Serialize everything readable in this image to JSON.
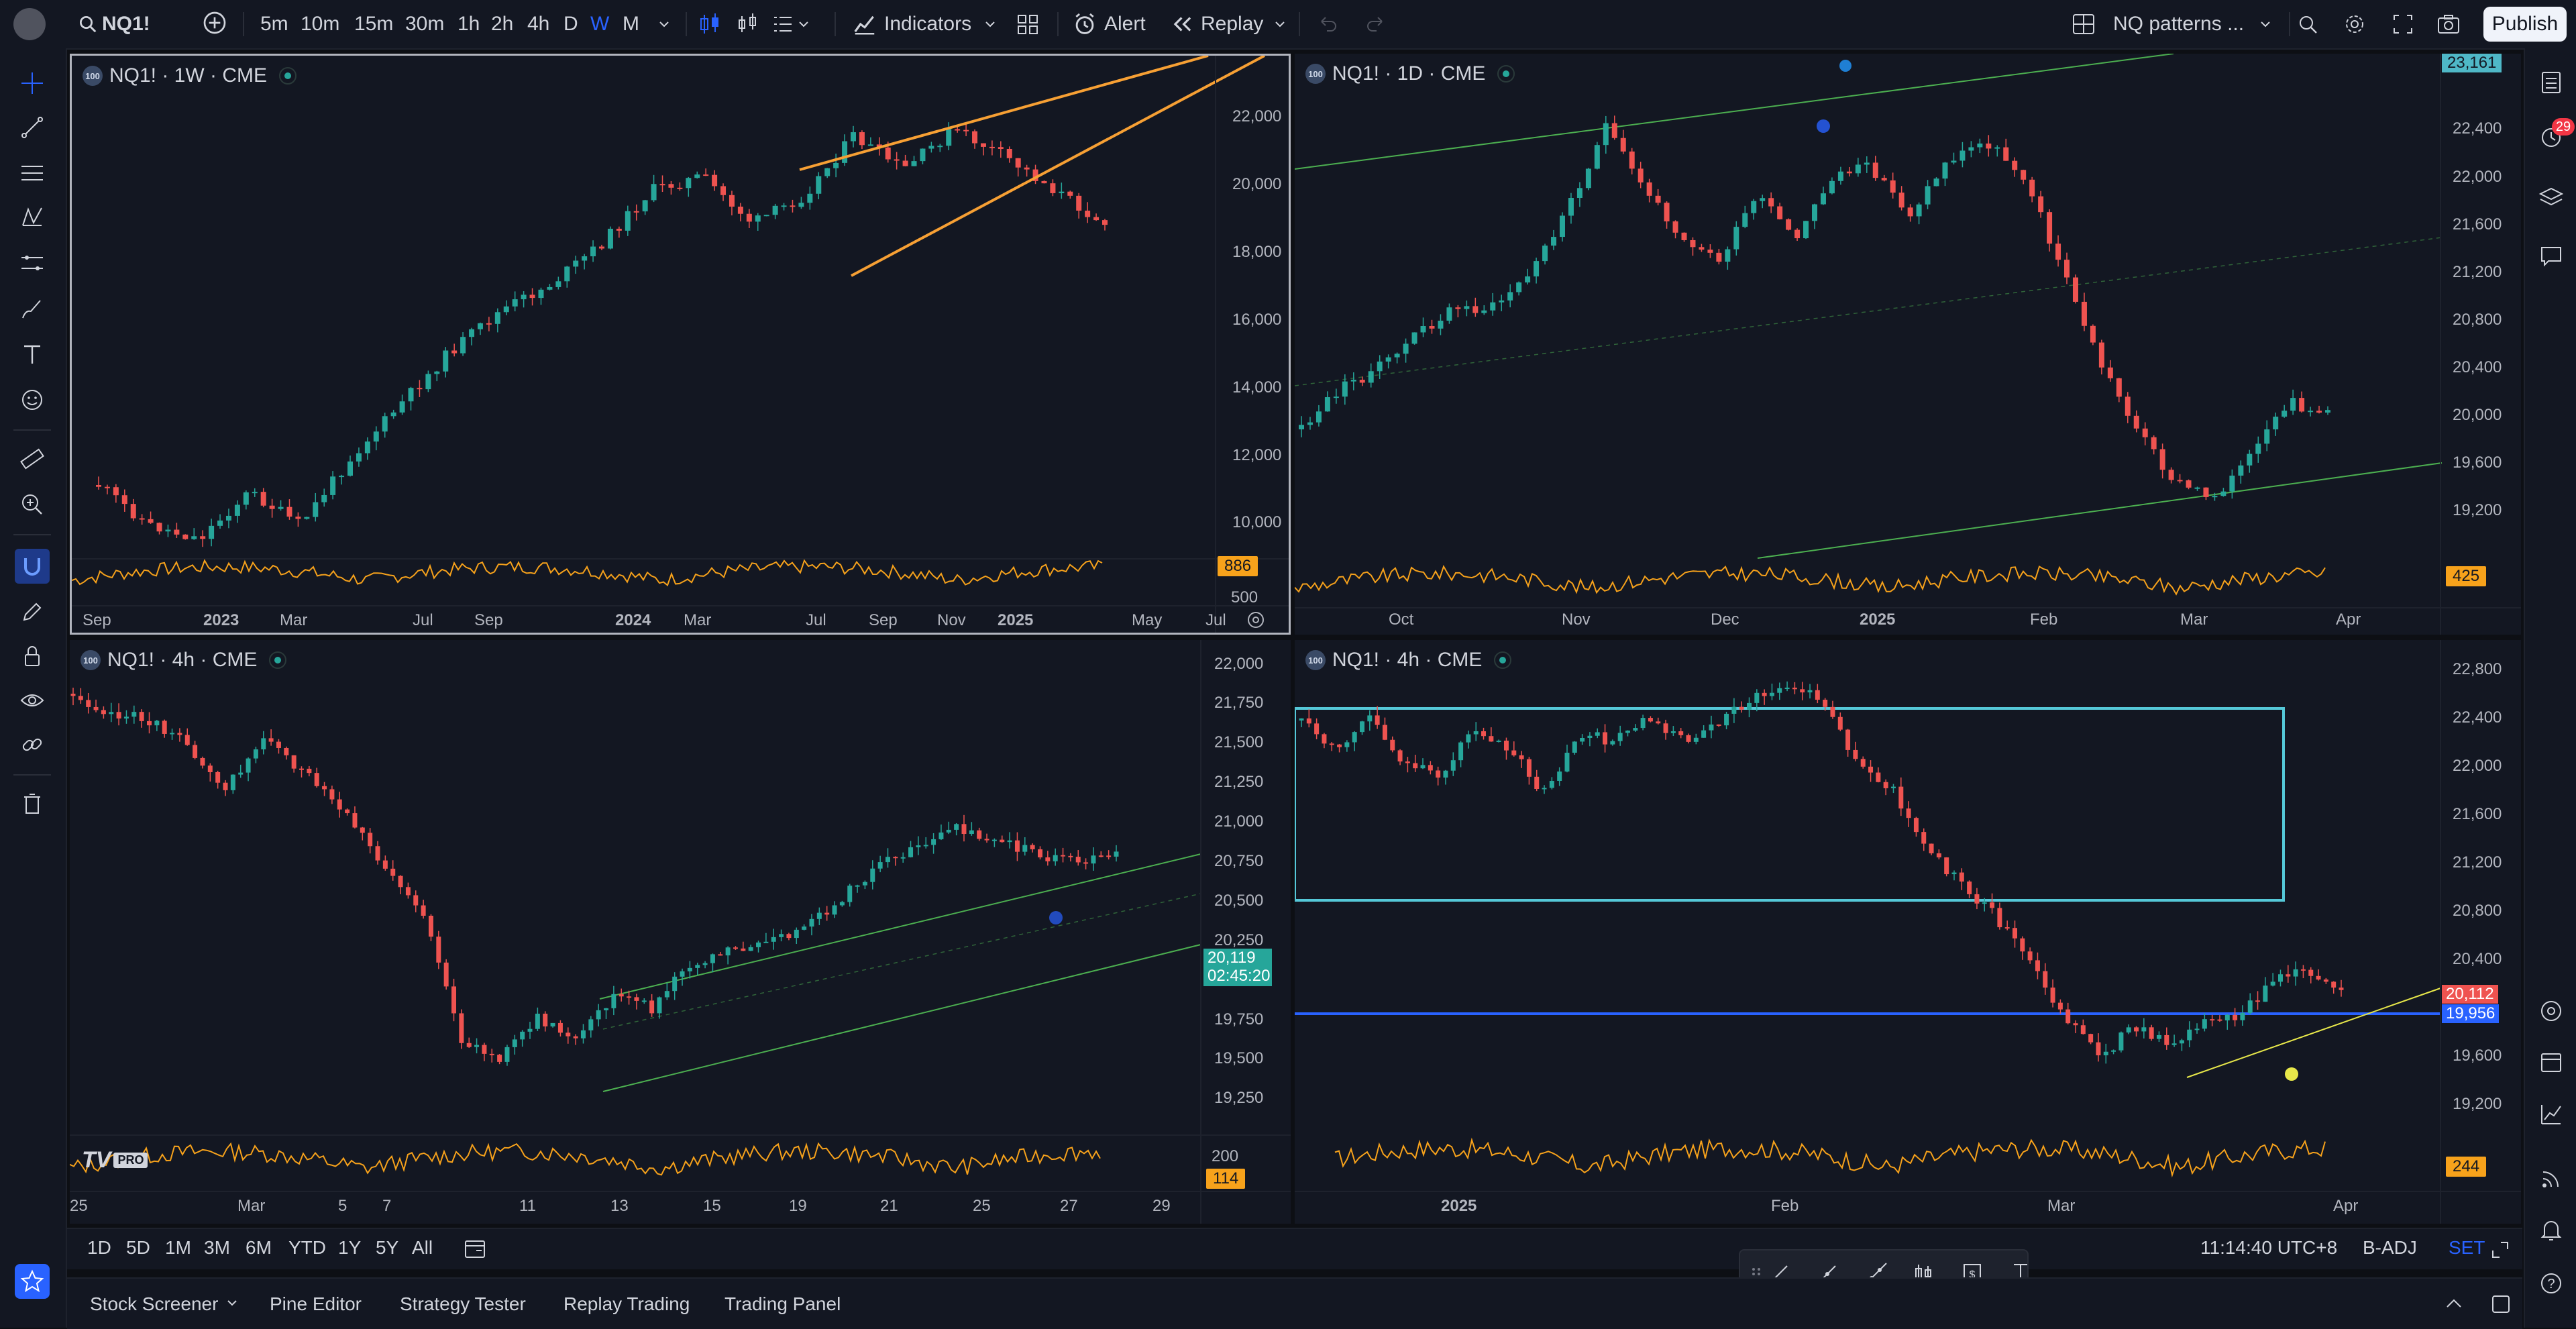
{
  "topbar": {
    "symbol": "NQ1!",
    "intervals": [
      "5m",
      "10m",
      "15m",
      "30m",
      "1h",
      "2h",
      "4h",
      "D",
      "W",
      "M"
    ],
    "active_interval": "W",
    "indicators_label": "Indicators",
    "alert_label": "Alert",
    "replay_label": "Replay",
    "layout_name": "NQ patterns ...",
    "publish_label": "Publish"
  },
  "panes": [
    {
      "title": "NQ1! · 1W · CME",
      "price_labels": [
        "22,000",
        "20,000",
        "18,000",
        "16,000",
        "14,000",
        "12,000",
        "10,000"
      ],
      "volume_labels": [
        "886",
        "500"
      ],
      "volume_value": "886",
      "time_labels": [
        "Sep",
        "2023",
        "Mar",
        "Jul",
        "Sep",
        "2024",
        "Mar",
        "Jul",
        "Sep",
        "Nov",
        "2025",
        "May",
        "Jul"
      ]
    },
    {
      "title": "NQ1! · 1D · CME",
      "top_price": "23,161",
      "price_labels": [
        "22,400",
        "22,000",
        "21,600",
        "21,200",
        "20,800",
        "20,400",
        "20,000",
        "19,600",
        "19,200"
      ],
      "volume_value": "425",
      "time_labels": [
        "Oct",
        "Nov",
        "Dec",
        "2025",
        "Feb",
        "Mar",
        "Apr"
      ],
      "notification_count": "29"
    },
    {
      "title": "NQ1! · 4h · CME",
      "price_labels": [
        "22,000",
        "21,750",
        "21,500",
        "21,250",
        "21,000",
        "20,750",
        "20,500",
        "20,250",
        "19,750",
        "19,500",
        "19,250"
      ],
      "last_price": "20,119",
      "countdown": "02:45:20",
      "volume_labels": [
        "200"
      ],
      "volume_value": "114",
      "time_labels": [
        "25",
        "Mar",
        "5",
        "7",
        "11",
        "13",
        "15",
        "19",
        "21",
        "25",
        "27",
        "29"
      ]
    },
    {
      "title": "NQ1! · 4h · CME",
      "price_labels": [
        "22,800",
        "22,400",
        "22,000",
        "21,600",
        "21,200",
        "20,800",
        "20,400",
        "19,600",
        "19,200"
      ],
      "last_price": "20,112",
      "hline_price": "19,956",
      "volume_value": "244",
      "time_labels": [
        "2025",
        "Feb",
        "Mar",
        "Apr"
      ]
    }
  ],
  "rangebar": {
    "ranges": [
      "1D",
      "5D",
      "1M",
      "3M",
      "6M",
      "YTD",
      "1Y",
      "5Y",
      "All"
    ],
    "clock": "11:14:40 UTC+8",
    "adjust": "B-ADJ",
    "session": "SET"
  },
  "bottompanel": {
    "tabs": [
      "Stock Screener",
      "Pine Editor",
      "Strategy Tester",
      "Replay Trading",
      "Trading Panel"
    ]
  },
  "colors": {
    "up": "#26a69a",
    "down": "#ef5350",
    "wedge": "#f7a034",
    "box": "#55c8d8",
    "hline": "#2962ff",
    "volume": "#f7a21b",
    "channel": "#4caf50"
  }
}
